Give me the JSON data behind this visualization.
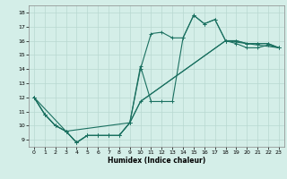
{
  "xlabel": "Humidex (Indice chaleur)",
  "bg_color": "#d4eee8",
  "grid_color": "#b8d8d0",
  "line_color": "#1a7060",
  "xlim": [
    -0.5,
    23.5
  ],
  "ylim": [
    8.5,
    18.5
  ],
  "xticks": [
    0,
    1,
    2,
    3,
    4,
    5,
    6,
    7,
    8,
    9,
    10,
    11,
    12,
    13,
    14,
    15,
    16,
    17,
    18,
    19,
    20,
    21,
    22,
    23
  ],
  "yticks": [
    9,
    10,
    11,
    12,
    13,
    14,
    15,
    16,
    17,
    18
  ],
  "series1_x": [
    0,
    1,
    2,
    3,
    4,
    5,
    6,
    7,
    8,
    9,
    10,
    11,
    12,
    13,
    14,
    15,
    16,
    17,
    18,
    19,
    20,
    21,
    22,
    23
  ],
  "series1_y": [
    12,
    10.8,
    10,
    9.6,
    8.8,
    9.3,
    9.3,
    9.3,
    9.3,
    10.2,
    14.2,
    11.7,
    11.7,
    11.7,
    16.2,
    17.8,
    17.2,
    17.5,
    16.0,
    16.0,
    15.8,
    15.8,
    15.8,
    15.5
  ],
  "series2_x": [
    0,
    1,
    2,
    3,
    4,
    5,
    6,
    7,
    8,
    9,
    10,
    11,
    12,
    13,
    14,
    15,
    16,
    17,
    18,
    19,
    20,
    21,
    22,
    23
  ],
  "series2_y": [
    12,
    10.8,
    10,
    9.6,
    8.8,
    9.3,
    9.3,
    9.3,
    9.3,
    10.2,
    14.0,
    16.5,
    16.6,
    16.2,
    16.2,
    17.8,
    17.2,
    17.5,
    16.0,
    16.0,
    15.8,
    15.8,
    15.8,
    15.5
  ],
  "series3_x": [
    0,
    1,
    2,
    3,
    4,
    5,
    6,
    7,
    8,
    9,
    10,
    18,
    19,
    20,
    21,
    22,
    23
  ],
  "series3_y": [
    12,
    10.8,
    10,
    9.6,
    8.8,
    9.3,
    9.3,
    9.3,
    9.3,
    10.2,
    11.7,
    16.0,
    15.8,
    15.5,
    15.5,
    15.7,
    15.5
  ],
  "series4_x": [
    0,
    3,
    9,
    10,
    18,
    23
  ],
  "series4_y": [
    12,
    9.6,
    10.2,
    11.7,
    16.0,
    15.5
  ]
}
